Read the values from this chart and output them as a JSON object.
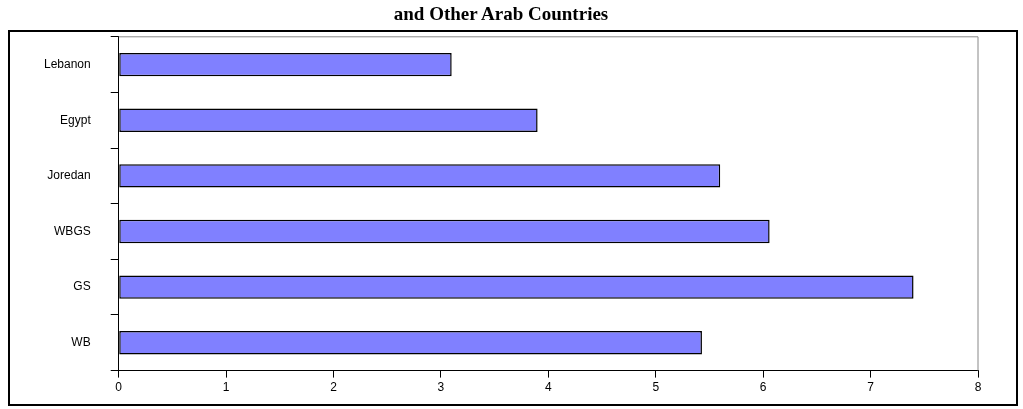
{
  "chart_data": {
    "type": "bar",
    "orientation": "horizontal",
    "title": "and Other Arab Countries",
    "categories": [
      "Lebanon",
      "Egypt",
      "Joredan",
      "WBGS",
      "GS",
      "WB"
    ],
    "values": [
      3.1,
      3.9,
      5.6,
      6.06,
      7.4,
      5.43
    ],
    "color": "#8080ff",
    "xlim": [
      0,
      8
    ],
    "xticks": [
      0,
      1,
      2,
      3,
      4,
      5,
      6,
      7,
      8
    ],
    "grid": false,
    "legend": false
  }
}
